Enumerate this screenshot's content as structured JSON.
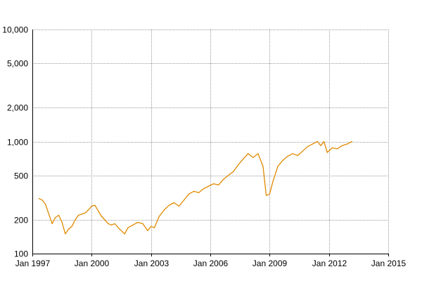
{
  "chart_data": {
    "type": "line",
    "title": "",
    "xlabel": "",
    "ylabel": "",
    "y_scale": "log",
    "ylim": [
      100,
      10000
    ],
    "xlim": [
      "1997-01",
      "2015-01"
    ],
    "grid": true,
    "legend": "none",
    "line_color": "#e08a00",
    "grid_color": "#9a9a9a",
    "x_ticks": [
      {
        "date": "1997-01",
        "label": "Jan 1997"
      },
      {
        "date": "2000-01",
        "label": "Jan 2000"
      },
      {
        "date": "2003-01",
        "label": "Jan 2003"
      },
      {
        "date": "2006-01",
        "label": "Jan 2006"
      },
      {
        "date": "2009-01",
        "label": "Jan 2009"
      },
      {
        "date": "2012-01",
        "label": "Jan 2012"
      },
      {
        "date": "2015-01",
        "label": "Jan 2015"
      }
    ],
    "y_ticks": [
      {
        "value": 100,
        "label": "100"
      },
      {
        "value": 200,
        "label": "200"
      },
      {
        "value": 500,
        "label": "500"
      },
      {
        "value": 1000,
        "label": "1,000"
      },
      {
        "value": 2000,
        "label": "2,000"
      },
      {
        "value": 5000,
        "label": "5,000"
      },
      {
        "value": 10000,
        "label": "10,000"
      }
    ],
    "series": [
      {
        "x": [
          "1997-05",
          "1997-07",
          "1997-09",
          "1997-11",
          "1998-01",
          "1998-03",
          "1998-05",
          "1998-07",
          "1998-09",
          "1998-11",
          "1999-01",
          "1999-03",
          "1999-05",
          "1999-07",
          "1999-09",
          "1999-11",
          "2000-01",
          "2000-03",
          "2000-05",
          "2000-07",
          "2000-09",
          "2000-11",
          "2001-01",
          "2001-03",
          "2001-06",
          "2001-09",
          "2001-11",
          "2002-02",
          "2002-05",
          "2002-08",
          "2002-11",
          "2003-01",
          "2003-03",
          "2003-06",
          "2003-09",
          "2003-12",
          "2004-03",
          "2004-06",
          "2004-09",
          "2004-12",
          "2005-03",
          "2005-06",
          "2005-09",
          "2005-12",
          "2006-03",
          "2006-06",
          "2006-09",
          "2006-12",
          "2007-03",
          "2007-06",
          "2007-09",
          "2007-12",
          "2008-03",
          "2008-06",
          "2008-09",
          "2008-10",
          "2008-11",
          "2009-01",
          "2009-03",
          "2009-06",
          "2009-09",
          "2009-12",
          "2010-03",
          "2010-06",
          "2010-09",
          "2010-12",
          "2011-03",
          "2011-06",
          "2011-08",
          "2011-10",
          "2011-12",
          "2012-03",
          "2012-06",
          "2012-09",
          "2012-12",
          "2013-03"
        ],
        "y": [
          310,
          300,
          275,
          225,
          185,
          210,
          220,
          190,
          150,
          165,
          175,
          200,
          220,
          225,
          230,
          245,
          265,
          270,
          240,
          215,
          200,
          185,
          180,
          185,
          165,
          150,
          170,
          180,
          190,
          185,
          160,
          175,
          170,
          215,
          245,
          270,
          285,
          265,
          300,
          340,
          360,
          350,
          380,
          400,
          420,
          410,
          460,
          500,
          540,
          620,
          700,
          780,
          720,
          780,
          600,
          440,
          330,
          340,
          440,
          600,
          680,
          740,
          780,
          750,
          820,
          900,
          950,
          1000,
          920,
          1000,
          800,
          880,
          860,
          920,
          950,
          1000
        ]
      }
    ]
  }
}
